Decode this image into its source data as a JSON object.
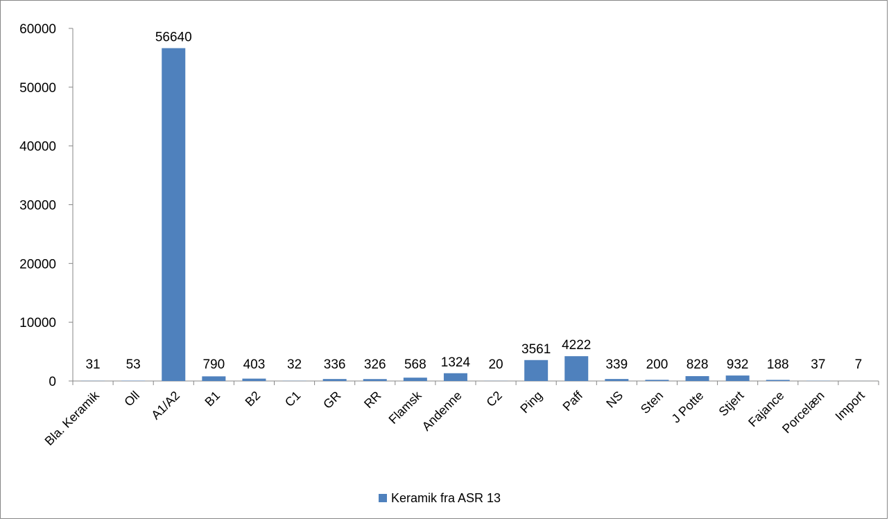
{
  "chart_data": {
    "type": "bar",
    "title": "",
    "xlabel": "",
    "ylabel": "",
    "ylim": [
      0,
      60000
    ],
    "yticks": [
      0,
      10000,
      20000,
      30000,
      40000,
      50000,
      60000
    ],
    "grid": false,
    "legend_position": "bottom",
    "categories": [
      "Bla. Keramik",
      "Oll",
      "A1/A2",
      "B1",
      "B2",
      "C1",
      "GR",
      "RR",
      "Flamsk",
      "Andenne",
      "C2",
      "Ping",
      "Paff",
      "NS",
      "Sten",
      "J Potte",
      "Stjert",
      "Fajance",
      "Porcelæn",
      "Import"
    ],
    "series": [
      {
        "name": "Keramik fra ASR 13",
        "color": "#4F81BD",
        "values": [
          31,
          53,
          56640,
          790,
          403,
          32,
          336,
          326,
          568,
          1324,
          20,
          3561,
          4222,
          339,
          200,
          828,
          932,
          188,
          37,
          7
        ]
      }
    ]
  }
}
